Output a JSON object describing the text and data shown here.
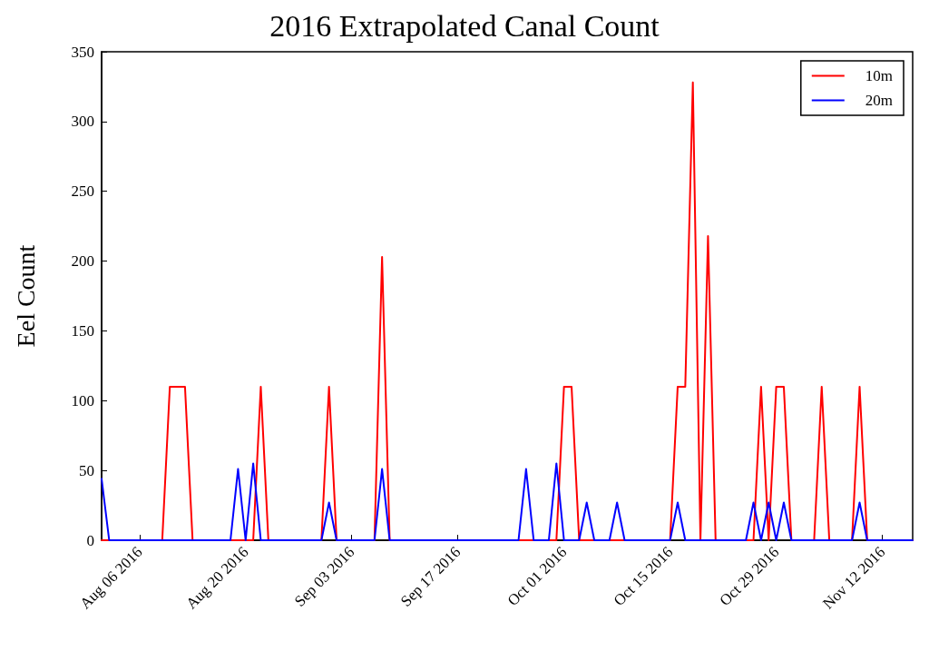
{
  "chart_data": {
    "type": "line",
    "title": "2016 Extrapolated Canal Count",
    "ylabel": "Eel Count",
    "xlim": [
      "2016-08-01",
      "2016-11-16"
    ],
    "xticks": [
      {
        "value": "2016-08-06",
        "label": "Aug 06 2016"
      },
      {
        "value": "2016-08-20",
        "label": "Aug 20 2016"
      },
      {
        "value": "2016-09-03",
        "label": "Sep 03 2016"
      },
      {
        "value": "2016-09-17",
        "label": "Sep 17 2016"
      },
      {
        "value": "2016-10-01",
        "label": "Oct 01 2016"
      },
      {
        "value": "2016-10-15",
        "label": "Oct 15 2016"
      },
      {
        "value": "2016-10-29",
        "label": "Oct 29 2016"
      },
      {
        "value": "2016-11-12",
        "label": "Nov 12 2016"
      }
    ],
    "ylim": [
      0,
      350
    ],
    "yticks": [
      0,
      50,
      100,
      150,
      200,
      250,
      300,
      350
    ],
    "grid": false,
    "legend": "top right",
    "line_style": "solid",
    "series": [
      {
        "name": "10m",
        "color": "#ff0000",
        "x": [
          "2016-08-01",
          "2016-08-09",
          "2016-08-10",
          "2016-08-12",
          "2016-08-13",
          "2016-08-21",
          "2016-08-22",
          "2016-08-23",
          "2016-08-30",
          "2016-08-31",
          "2016-09-01",
          "2016-09-06",
          "2016-09-07",
          "2016-09-08",
          "2016-09-30",
          "2016-10-01",
          "2016-10-02",
          "2016-10-03",
          "2016-10-15",
          "2016-10-16",
          "2016-10-17",
          "2016-10-18",
          "2016-10-19",
          "2016-10-20",
          "2016-10-21",
          "2016-10-26",
          "2016-10-27",
          "2016-10-28",
          "2016-10-29",
          "2016-10-30",
          "2016-10-31",
          "2016-11-03",
          "2016-11-04",
          "2016-11-05",
          "2016-11-08",
          "2016-11-09",
          "2016-11-10",
          "2016-11-16"
        ],
        "values": [
          0,
          0,
          110,
          110,
          0,
          0,
          110,
          0,
          0,
          110,
          0,
          0,
          203,
          0,
          0,
          110,
          110,
          0,
          0,
          110,
          110,
          328,
          0,
          218,
          0,
          0,
          110,
          0,
          110,
          110,
          0,
          0,
          110,
          0,
          0,
          110,
          0,
          0
        ]
      },
      {
        "name": "20m",
        "color": "#0000ff",
        "x": [
          "2016-08-01",
          "2016-08-02",
          "2016-08-18",
          "2016-08-19",
          "2016-08-20",
          "2016-08-21",
          "2016-08-22",
          "2016-08-30",
          "2016-08-31",
          "2016-09-01",
          "2016-09-06",
          "2016-09-07",
          "2016-09-08",
          "2016-09-25",
          "2016-09-26",
          "2016-09-27",
          "2016-09-29",
          "2016-09-30",
          "2016-10-01",
          "2016-10-03",
          "2016-10-04",
          "2016-10-05",
          "2016-10-07",
          "2016-10-08",
          "2016-10-09",
          "2016-10-15",
          "2016-10-16",
          "2016-10-17",
          "2016-10-25",
          "2016-10-26",
          "2016-10-27",
          "2016-10-28",
          "2016-10-29",
          "2016-10-30",
          "2016-10-31",
          "2016-11-08",
          "2016-11-09",
          "2016-11-10",
          "2016-11-16"
        ],
        "values": [
          44,
          0,
          0,
          51,
          0,
          55,
          0,
          0,
          27,
          0,
          0,
          51,
          0,
          0,
          51,
          0,
          0,
          55,
          0,
          0,
          27,
          0,
          0,
          27,
          0,
          0,
          27,
          0,
          0,
          27,
          0,
          27,
          0,
          27,
          0,
          0,
          27,
          0,
          0
        ]
      }
    ]
  }
}
